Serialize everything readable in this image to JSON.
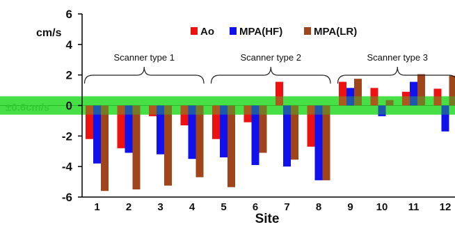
{
  "chart_data": {
    "type": "bar",
    "categories": [
      "1",
      "2",
      "3",
      "4",
      "5",
      "6",
      "7",
      "8",
      "9",
      "10",
      "11",
      "12"
    ],
    "series": [
      {
        "name": "Ao",
        "color": "#ee1111",
        "values": [
          -2.2,
          -2.8,
          -0.7,
          -1.3,
          -2.2,
          -1.1,
          1.55,
          -2.7,
          1.55,
          1.15,
          0.9,
          1.1
        ]
      },
      {
        "name": "MPA(HF)",
        "color": "#1111ee",
        "values": [
          -3.8,
          -3.1,
          -3.2,
          -3.5,
          -3.4,
          -3.9,
          -4.0,
          -4.9,
          1.15,
          -0.7,
          1.55,
          -1.7
        ]
      },
      {
        "name": "MPA(LR)",
        "color": "#a0441b",
        "values": [
          -5.6,
          -5.5,
          -5.25,
          -4.7,
          -5.35,
          -3.1,
          -3.55,
          -4.9,
          1.75,
          0.35,
          2.05,
          1.95
        ]
      }
    ],
    "y_ticks": [
      "6",
      "4",
      "2",
      "0",
      "-2",
      "-4",
      "-6"
    ],
    "ylim": [
      -6,
      6
    ],
    "y_unit": "cm/s",
    "xlabel": "Site",
    "band": {
      "label": "±0.6cm/s",
      "low": -0.6,
      "high": 0.6,
      "color": "#33dd33"
    },
    "groups": [
      {
        "label": "Scanner type 1",
        "from": 1,
        "to": 4
      },
      {
        "label": "Scanner type 2",
        "from": 5,
        "to": 8
      },
      {
        "label": "Scanner type 3",
        "from": 9,
        "to": 12
      }
    ],
    "legend_position": "top-center"
  }
}
